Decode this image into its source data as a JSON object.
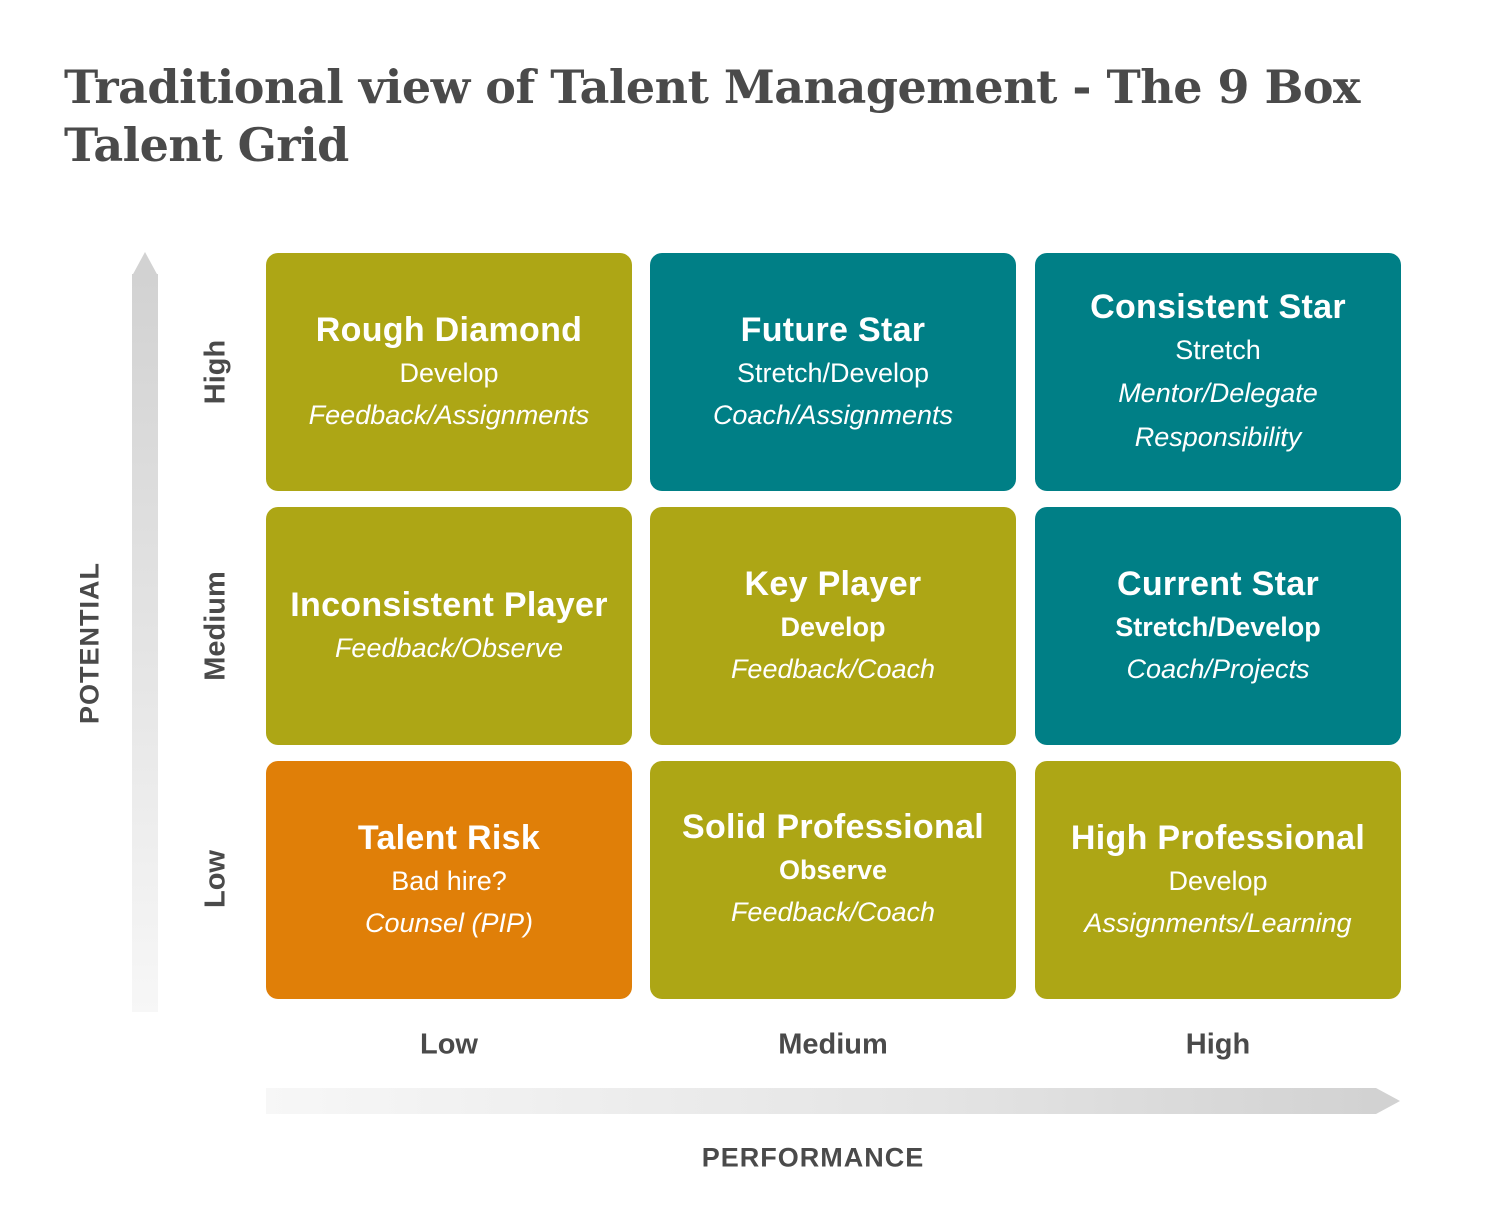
{
  "title": "Traditional view of Talent Management - The 9 Box Talent Grid",
  "axes": {
    "y_title": "POTENTIAL",
    "x_title": "PERFORMANCE",
    "y_levels": [
      "High",
      "Medium",
      "Low"
    ],
    "x_levels": [
      "Low",
      "Medium",
      "High"
    ]
  },
  "colors": {
    "olive": "#ada615",
    "teal": "#007f86",
    "orange": "#e07f08",
    "text": "#4a4a4a"
  },
  "grid": [
    {
      "potential": "High",
      "performance": "Low",
      "name": "Rough Diamond",
      "action": "Develop",
      "detail": [
        "Feedback/Assignments"
      ],
      "color": "#ada615"
    },
    {
      "potential": "High",
      "performance": "Medium",
      "name": "Future Star",
      "action": "Stretch/Develop",
      "detail": [
        "Coach/Assignments"
      ],
      "color": "#007f86"
    },
    {
      "potential": "High",
      "performance": "High",
      "name": "Consistent Star",
      "action": "Stretch",
      "detail": [
        "Mentor/Delegate",
        "Responsibility"
      ],
      "color": "#007f86"
    },
    {
      "potential": "Medium",
      "performance": "Low",
      "name": "Inconsistent Player",
      "action": "",
      "detail": [
        "Feedback/Observe"
      ],
      "color": "#ada615"
    },
    {
      "potential": "Medium",
      "performance": "Medium",
      "name": "Key Player",
      "action": "Develop",
      "detail": [
        "Feedback/Coach"
      ],
      "color": "#ada615"
    },
    {
      "potential": "Medium",
      "performance": "High",
      "name": "Current Star",
      "action": "Stretch/Develop",
      "detail": [
        "Coach/Projects"
      ],
      "color": "#007f86"
    },
    {
      "potential": "Low",
      "performance": "Low",
      "name": "Talent Risk",
      "action": "Bad hire?",
      "detail": [
        "Counsel (PIP)"
      ],
      "color": "#e07f08"
    },
    {
      "potential": "Low",
      "performance": "Medium",
      "name": "Solid Professional",
      "action": "Observe",
      "detail": [
        "Feedback/Coach"
      ],
      "color": "#ada615"
    },
    {
      "potential": "Low",
      "performance": "High",
      "name": "High Professional",
      "action": "Develop",
      "detail": [
        "Assignments/Learning"
      ],
      "color": "#ada615"
    }
  ]
}
